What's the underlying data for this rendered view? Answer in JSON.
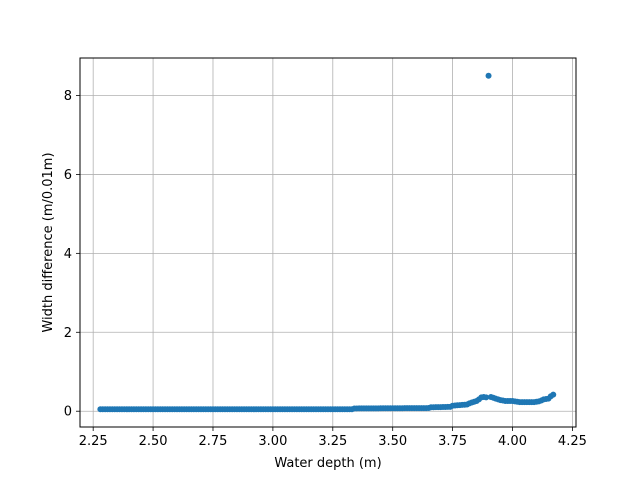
{
  "chart_data": {
    "type": "scatter",
    "title": "",
    "xlabel": "Water depth (m)",
    "ylabel": "Width difference (m/0.01m)",
    "xlim": [
      2.195,
      4.265
    ],
    "ylim": [
      -0.4,
      8.95
    ],
    "grid": true,
    "legend": "none",
    "marker_color": "#1f77b4",
    "xticks": [
      2.25,
      2.5,
      2.75,
      3.0,
      3.25,
      3.5,
      3.75,
      4.0,
      4.25
    ],
    "xtick_labels": [
      "2.25",
      "2.50",
      "2.75",
      "3.00",
      "3.25",
      "3.50",
      "3.75",
      "4.00",
      "4.25"
    ],
    "yticks": [
      0,
      2,
      4,
      6,
      8
    ],
    "ytick_labels": [
      "0",
      "2",
      "4",
      "6",
      "8"
    ],
    "series": [
      {
        "name": "width difference",
        "segments": [
          {
            "x_start": 2.28,
            "x_end": 3.33,
            "step": 0.01,
            "y_start": 0.05,
            "y_end": 0.05
          },
          {
            "x_start": 3.34,
            "x_end": 3.65,
            "step": 0.01,
            "y_start": 0.07,
            "y_end": 0.08
          },
          {
            "x_start": 3.66,
            "x_end": 3.74,
            "step": 0.01,
            "y_start": 0.1,
            "y_end": 0.11
          },
          {
            "x_start": 3.75,
            "x_end": 3.81,
            "step": 0.01,
            "y_start": 0.14,
            "y_end": 0.17
          }
        ],
        "points": [
          [
            3.82,
            0.2
          ],
          [
            3.83,
            0.22
          ],
          [
            3.84,
            0.24
          ],
          [
            3.85,
            0.26
          ],
          [
            3.86,
            0.3
          ],
          [
            3.87,
            0.35
          ],
          [
            3.88,
            0.36
          ],
          [
            3.89,
            0.35
          ],
          [
            3.9,
            8.5
          ],
          [
            3.91,
            0.36
          ],
          [
            3.92,
            0.34
          ],
          [
            3.93,
            0.32
          ],
          [
            3.94,
            0.3
          ],
          [
            3.95,
            0.28
          ],
          [
            3.96,
            0.27
          ],
          [
            3.97,
            0.26
          ],
          [
            3.98,
            0.26
          ],
          [
            3.99,
            0.26
          ],
          [
            4.0,
            0.26
          ],
          [
            4.01,
            0.25
          ],
          [
            4.02,
            0.24
          ],
          [
            4.03,
            0.23
          ],
          [
            4.04,
            0.23
          ],
          [
            4.05,
            0.23
          ],
          [
            4.06,
            0.23
          ],
          [
            4.07,
            0.23
          ],
          [
            4.08,
            0.23
          ],
          [
            4.09,
            0.23
          ],
          [
            4.1,
            0.24
          ],
          [
            4.11,
            0.25
          ],
          [
            4.12,
            0.27
          ],
          [
            4.13,
            0.3
          ],
          [
            4.14,
            0.31
          ],
          [
            4.15,
            0.32
          ],
          [
            4.16,
            0.38
          ],
          [
            4.17,
            0.42
          ]
        ]
      }
    ]
  }
}
